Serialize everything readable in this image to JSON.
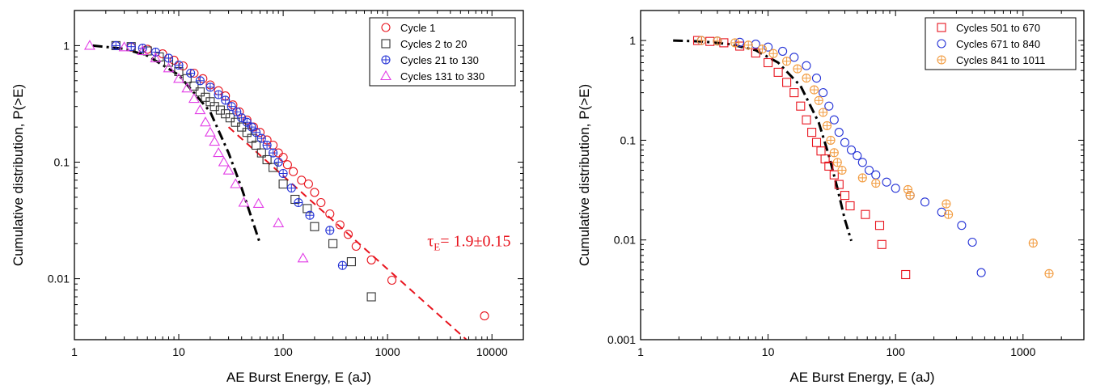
{
  "chart_data": [
    {
      "type": "scatter",
      "xlabel": "AE Burst Energy, E (aJ)",
      "ylabel": "Cumulative distribution, P(>E)",
      "xscale": "log",
      "yscale": "log",
      "xlim": [
        1,
        20000
      ],
      "ylim": [
        0.003,
        2
      ],
      "xticks": [
        {
          "v": 1,
          "t": "1"
        },
        {
          "v": 10,
          "t": "10"
        },
        {
          "v": 100,
          "t": "100"
        },
        {
          "v": 1000,
          "t": "1000"
        },
        {
          "v": 10000,
          "t": "10000"
        }
      ],
      "yticks": [
        {
          "v": 1,
          "t": "1"
        },
        {
          "v": 0.1,
          "t": "0.1"
        },
        {
          "v": 0.01,
          "t": "0.01"
        }
      ],
      "legend_position": "top-right",
      "series": [
        {
          "name": "Cycle 1",
          "marker": "circle",
          "color": "#e8141e",
          "x": [
            2.5,
            3.5,
            5,
            7,
            9,
            11,
            14,
            17,
            20,
            24,
            28,
            33,
            38,
            45,
            52,
            60,
            70,
            80,
            90,
            100,
            110,
            125,
            150,
            175,
            200,
            230,
            280,
            350,
            420,
            500,
            700,
            1100,
            8500
          ],
          "y": [
            1,
            0.97,
            0.93,
            0.85,
            0.75,
            0.67,
            0.58,
            0.52,
            0.46,
            0.41,
            0.37,
            0.31,
            0.27,
            0.23,
            0.2,
            0.18,
            0.155,
            0.14,
            0.12,
            0.11,
            0.095,
            0.083,
            0.07,
            0.065,
            0.055,
            0.045,
            0.036,
            0.029,
            0.024,
            0.019,
            0.0145,
            0.0097,
            0.0048
          ]
        },
        {
          "name": "Cycles 2 to 20",
          "marker": "square",
          "color": "#333333",
          "x": [
            2.5,
            3.5,
            5,
            6.5,
            8,
            10,
            12,
            14,
            16,
            18,
            20,
            22,
            25,
            28,
            31,
            35,
            40,
            45,
            50,
            55,
            62,
            70,
            80,
            100,
            130,
            170,
            200,
            300,
            450,
            700
          ],
          "y": [
            1,
            0.98,
            0.9,
            0.8,
            0.72,
            0.6,
            0.52,
            0.45,
            0.4,
            0.36,
            0.33,
            0.3,
            0.28,
            0.26,
            0.24,
            0.22,
            0.2,
            0.18,
            0.16,
            0.14,
            0.12,
            0.105,
            0.09,
            0.065,
            0.048,
            0.04,
            0.028,
            0.02,
            0.014,
            0.007
          ]
        },
        {
          "name": "Cycles 21 to 130",
          "marker": "circleplus",
          "color": "#2432d6",
          "x": [
            2.5,
            3.5,
            4.5,
            6,
            8,
            10,
            13,
            16,
            20,
            24,
            28,
            32,
            36,
            40,
            45,
            50,
            55,
            62,
            70,
            80,
            90,
            100,
            120,
            140,
            180,
            280,
            370
          ],
          "y": [
            1,
            0.98,
            0.95,
            0.88,
            0.78,
            0.68,
            0.58,
            0.5,
            0.44,
            0.38,
            0.34,
            0.3,
            0.27,
            0.24,
            0.22,
            0.2,
            0.18,
            0.16,
            0.14,
            0.12,
            0.1,
            0.08,
            0.06,
            0.045,
            0.035,
            0.026,
            0.013
          ]
        },
        {
          "name": "Cycles 131 to 330",
          "marker": "triangle",
          "color": "#e23de6",
          "x": [
            1.4,
            3,
            4.5,
            6,
            8,
            10,
            12,
            14,
            16,
            18,
            20,
            22,
            24,
            27,
            30,
            35,
            42,
            58,
            90,
            155
          ],
          "y": [
            1,
            0.97,
            0.9,
            0.78,
            0.64,
            0.52,
            0.43,
            0.35,
            0.28,
            0.22,
            0.18,
            0.15,
            0.12,
            0.1,
            0.085,
            0.065,
            0.045,
            0.044,
            0.03,
            0.015
          ]
        }
      ],
      "lines": [
        {
          "kind": "fit-cutoff",
          "style": "dashdot",
          "color": "#000000",
          "x": [
            1.5,
            3,
            5,
            10,
            20,
            30,
            40,
            50,
            60
          ],
          "y": [
            1,
            0.94,
            0.82,
            0.56,
            0.27,
            0.12,
            0.06,
            0.033,
            0.02
          ]
        },
        {
          "kind": "power-law",
          "style": "dashed",
          "color": "#e8141e",
          "x": [
            30,
            5700
          ],
          "y": [
            0.2,
            0.003
          ]
        }
      ],
      "annotation": {
        "base": "τ",
        "sub": "E",
        "rest": "= 1.9±0.15",
        "at": [
          2400,
          0.019
        ]
      }
    },
    {
      "type": "scatter",
      "xlabel": "AE Burst Energy, E (aJ)",
      "ylabel": "Cumulative distribution, P(>E)",
      "xscale": "log",
      "yscale": "log",
      "xlim": [
        1,
        3000
      ],
      "ylim": [
        0.001,
        2
      ],
      "xticks": [
        {
          "v": 1,
          "t": "1"
        },
        {
          "v": 10,
          "t": "10"
        },
        {
          "v": 100,
          "t": "100"
        },
        {
          "v": 1000,
          "t": "1000"
        }
      ],
      "yticks": [
        {
          "v": 1,
          "t": "1"
        },
        {
          "v": 0.1,
          "t": "0.1"
        },
        {
          "v": 0.01,
          "t": "0.01"
        },
        {
          "v": 0.001,
          "t": "0.001"
        }
      ],
      "legend_position": "top-right",
      "series": [
        {
          "name": "Cycles 501 to 670",
          "marker": "square",
          "color": "#e8141e",
          "x": [
            2.8,
            3.5,
            4.5,
            6,
            8,
            10,
            12,
            14,
            16,
            18,
            20,
            22,
            24,
            26,
            28,
            30,
            33,
            36,
            40,
            44,
            58,
            75,
            78,
            120
          ],
          "y": [
            1,
            0.98,
            0.95,
            0.88,
            0.75,
            0.6,
            0.48,
            0.38,
            0.3,
            0.22,
            0.16,
            0.12,
            0.095,
            0.078,
            0.065,
            0.055,
            0.045,
            0.036,
            0.028,
            0.022,
            0.018,
            0.014,
            0.009,
            0.0045
          ]
        },
        {
          "name": "Cycles 671 to 840",
          "marker": "circle",
          "color": "#2432d6",
          "x": [
            3,
            4,
            6,
            8,
            10,
            13,
            16,
            20,
            24,
            27,
            30,
            33,
            36,
            40,
            45,
            50,
            55,
            62,
            70,
            85,
            100,
            130,
            170,
            230,
            330,
            400,
            470
          ],
          "y": [
            1,
            0.99,
            0.96,
            0.92,
            0.86,
            0.78,
            0.68,
            0.56,
            0.42,
            0.3,
            0.22,
            0.16,
            0.12,
            0.095,
            0.08,
            0.07,
            0.06,
            0.05,
            0.045,
            0.038,
            0.033,
            0.028,
            0.024,
            0.019,
            0.014,
            0.0095,
            0.0047
          ]
        },
        {
          "name": "Cycles 841 to 1011",
          "marker": "circleplus",
          "color": "#f29b3f",
          "x": [
            3,
            4,
            5.5,
            7,
            9,
            11,
            14,
            17,
            20,
            23,
            25,
            27,
            29,
            31,
            33,
            35,
            38,
            55,
            70,
            125,
            130,
            250,
            260,
            1200,
            1600
          ],
          "y": [
            1,
            0.99,
            0.95,
            0.9,
            0.82,
            0.74,
            0.62,
            0.52,
            0.42,
            0.32,
            0.25,
            0.19,
            0.14,
            0.1,
            0.075,
            0.06,
            0.05,
            0.042,
            0.037,
            0.032,
            0.028,
            0.023,
            0.018,
            0.0093,
            0.0046
          ]
        }
      ],
      "lines": [
        {
          "kind": "fit-cutoff",
          "style": "dashdot",
          "color": "#000000",
          "x": [
            1.8,
            3,
            5,
            8,
            12,
            18,
            25,
            30,
            35,
            40,
            45
          ],
          "y": [
            1,
            0.98,
            0.92,
            0.8,
            0.6,
            0.35,
            0.15,
            0.07,
            0.033,
            0.016,
            0.0098
          ]
        }
      ]
    }
  ]
}
